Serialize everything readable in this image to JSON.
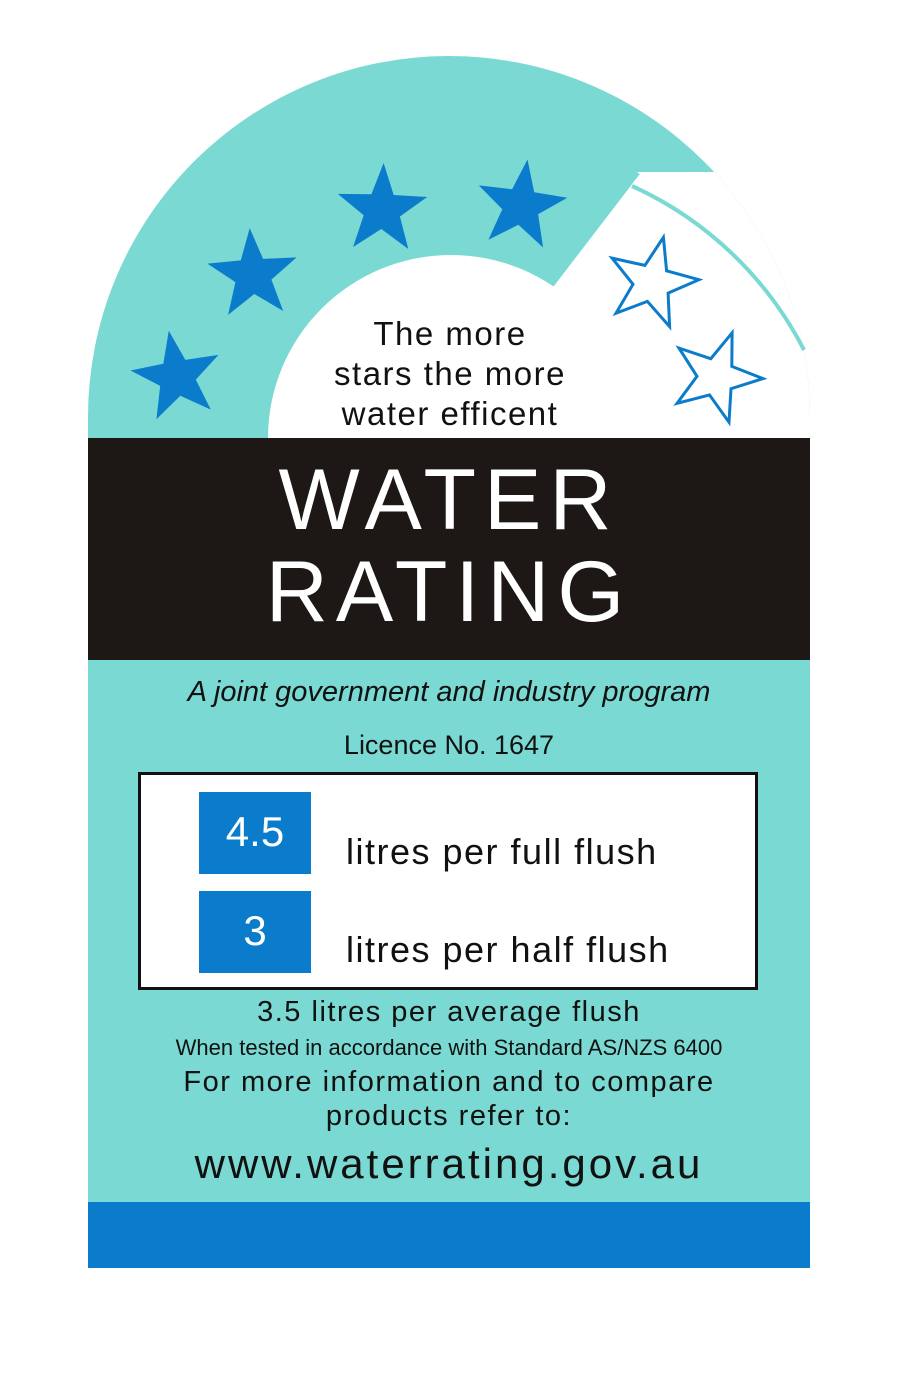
{
  "colors": {
    "teal": "#7ad9d2",
    "star_blue": "#0b7ccb",
    "black_band": "#1d1715",
    "white": "#ffffff"
  },
  "rating": {
    "stars_filled": 4,
    "stars_total": 6
  },
  "tagline": [
    "The more",
    "stars the more",
    "water efficent"
  ],
  "title": [
    "WATER",
    "RATING"
  ],
  "subtitle": "A joint government and industry program",
  "licence": "Licence No. 1647",
  "flush": {
    "full": {
      "value": "4.5",
      "label": "litres per full flush"
    },
    "half": {
      "value": "3",
      "label": "litres per half flush"
    }
  },
  "average": "3.5 litres per average flush",
  "standard": "When tested in accordance with Standard AS/NZS 6400",
  "info": [
    "For more information and to compare",
    "products refer to:"
  ],
  "website": "www.waterrating.gov.au"
}
